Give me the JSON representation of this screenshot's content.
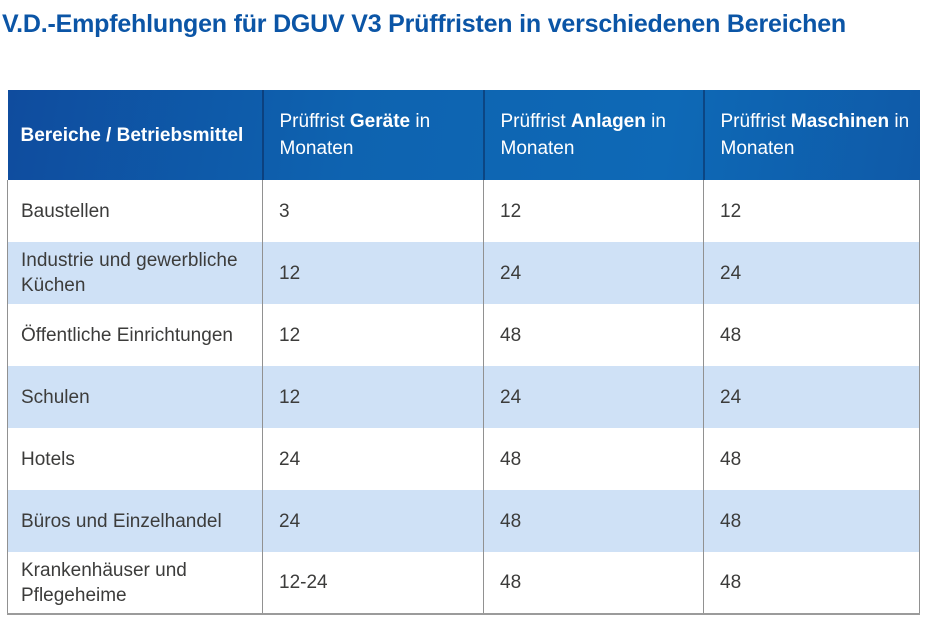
{
  "title": "V.D.-Empfehlungen für DGUV V3 Prüffristen in verschiedenen Bereichen",
  "colors": {
    "title_blue": "#0b55a6",
    "header_gradient_left": "#0f4c9e",
    "header_gradient_mid": "#0e69b6",
    "header_gradient_right": "#0f5aa8",
    "header_text": "#ffffff",
    "row_white": "#ffffff",
    "row_light_blue": "#cfe1f6",
    "body_text": "#3c3c3b",
    "grid_border": "#919191"
  },
  "table": {
    "header": [
      {
        "prefix": "",
        "emphasis": "Bereiche / Betriebsmittel",
        "suffix": ""
      },
      {
        "prefix": "Prüffrist ",
        "emphasis": "Geräte",
        "suffix": " in Monaten"
      },
      {
        "prefix": "Prüffrist ",
        "emphasis": "Anlagen",
        "suffix": " in Monaten"
      },
      {
        "prefix": "Prüffrist ",
        "emphasis": "Maschinen",
        "suffix": " in Monaten"
      }
    ],
    "rows": [
      {
        "bereich": "Baustellen",
        "geraete": "3",
        "anlagen": "12",
        "maschinen": "12"
      },
      {
        "bereich": "Industrie und gewerbliche Küchen",
        "geraete": "12",
        "anlagen": "24",
        "maschinen": "24"
      },
      {
        "bereich": "Öffentliche Einrichtungen",
        "geraete": "12",
        "anlagen": "48",
        "maschinen": "48"
      },
      {
        "bereich": "Schulen",
        "geraete": "12",
        "anlagen": "24",
        "maschinen": "24"
      },
      {
        "bereich": "Hotels",
        "geraete": "24",
        "anlagen": "48",
        "maschinen": "48"
      },
      {
        "bereich": "Büros und Einzelhandel",
        "geraete": "24",
        "anlagen": "48",
        "maschinen": "48"
      },
      {
        "bereich": "Krankenhäuser und Pflegeheime",
        "geraete": "12-24",
        "anlagen": "48",
        "maschinen": "48"
      }
    ]
  },
  "chart_data": {
    "type": "table",
    "title": "V.D.-Empfehlungen für DGUV V3 Prüffristen in verschiedenen Bereichen",
    "columns": [
      "Bereiche / Betriebsmittel",
      "Prüffrist Geräte in Monaten",
      "Prüffrist Anlagen in Monaten",
      "Prüffrist Maschinen in Monaten"
    ],
    "rows": [
      [
        "Baustellen",
        "3",
        "12",
        "12"
      ],
      [
        "Industrie und gewerbliche Küchen",
        "12",
        "24",
        "24"
      ],
      [
        "Öffentliche Einrichtungen",
        "12",
        "48",
        "48"
      ],
      [
        "Schulen",
        "12",
        "24",
        "24"
      ],
      [
        "Hotels",
        "24",
        "48",
        "48"
      ],
      [
        "Büros und Einzelhandel",
        "24",
        "48",
        "48"
      ],
      [
        "Krankenhäuser und Pflegeheime",
        "12-24",
        "48",
        "48"
      ]
    ]
  }
}
